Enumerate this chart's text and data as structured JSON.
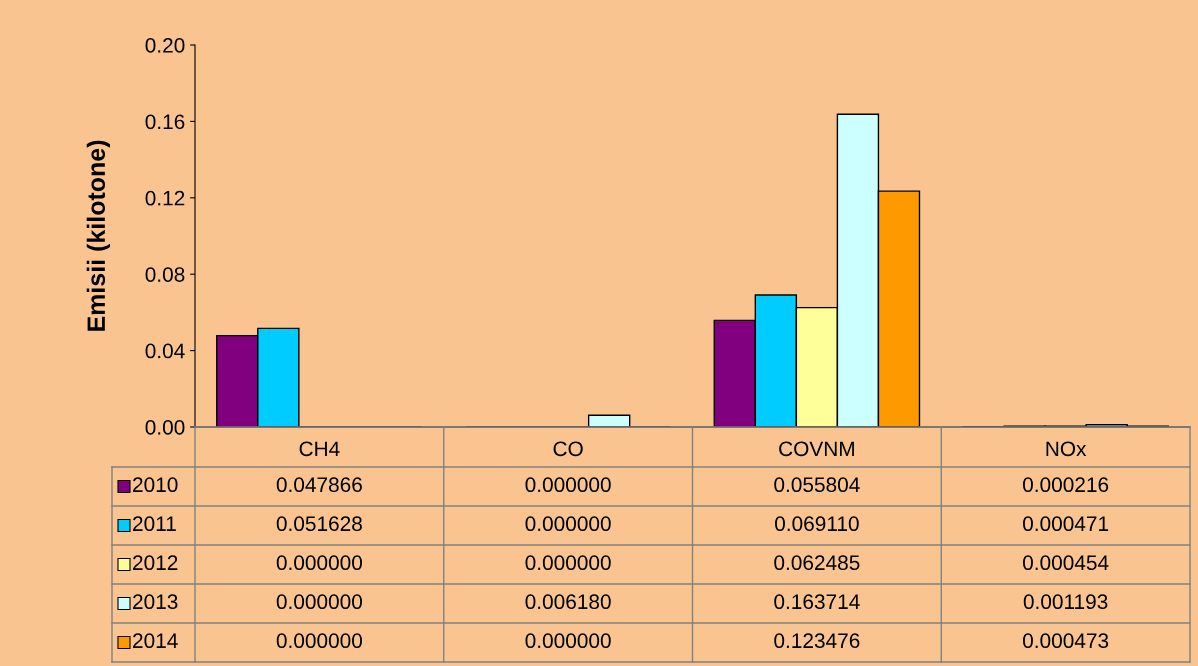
{
  "chart_data": {
    "type": "bar",
    "ylabel": "Emisii (kilotone)",
    "categories": [
      "CH4",
      "CO",
      "COVNM",
      "NOx"
    ],
    "ylim": [
      0,
      0.2
    ],
    "yticks": [
      {
        "value": 0,
        "label": "0.00"
      },
      {
        "value": 0.04,
        "label": "0.04"
      },
      {
        "value": 0.08,
        "label": "0.08"
      },
      {
        "value": 0.12,
        "label": "0.12"
      },
      {
        "value": 0.16,
        "label": "0.16"
      },
      {
        "value": 0.2,
        "label": "0.20"
      }
    ],
    "legend": "bottom",
    "series": [
      {
        "name": "2010",
        "color": "#800080",
        "values": [
          0.047866,
          0.0,
          0.055804,
          0.000216
        ],
        "value_labels": [
          "0.047866",
          "0.000000",
          "0.055804",
          "0.000216"
        ]
      },
      {
        "name": "2011",
        "color": "#00ccff",
        "values": [
          0.051628,
          0.0,
          0.06911,
          0.000471
        ],
        "value_labels": [
          "0.051628",
          "0.000000",
          "0.069110",
          "0.000471"
        ]
      },
      {
        "name": "2012",
        "color": "#ffff99",
        "values": [
          0.0,
          0.0,
          0.062485,
          0.000454
        ],
        "value_labels": [
          "0.000000",
          "0.000000",
          "0.062485",
          "0.000454"
        ]
      },
      {
        "name": "2013",
        "color": "#ccffff",
        "values": [
          0.0,
          0.00618,
          0.163714,
          0.001193
        ],
        "value_labels": [
          "0.000000",
          "0.006180",
          "0.163714",
          "0.001193"
        ]
      },
      {
        "name": "2014",
        "color": "#ff9900",
        "values": [
          0.0,
          0.0,
          0.123476,
          0.000473
        ],
        "value_labels": [
          "0.000000",
          "0.000000",
          "0.123476",
          "0.000473"
        ]
      }
    ]
  }
}
